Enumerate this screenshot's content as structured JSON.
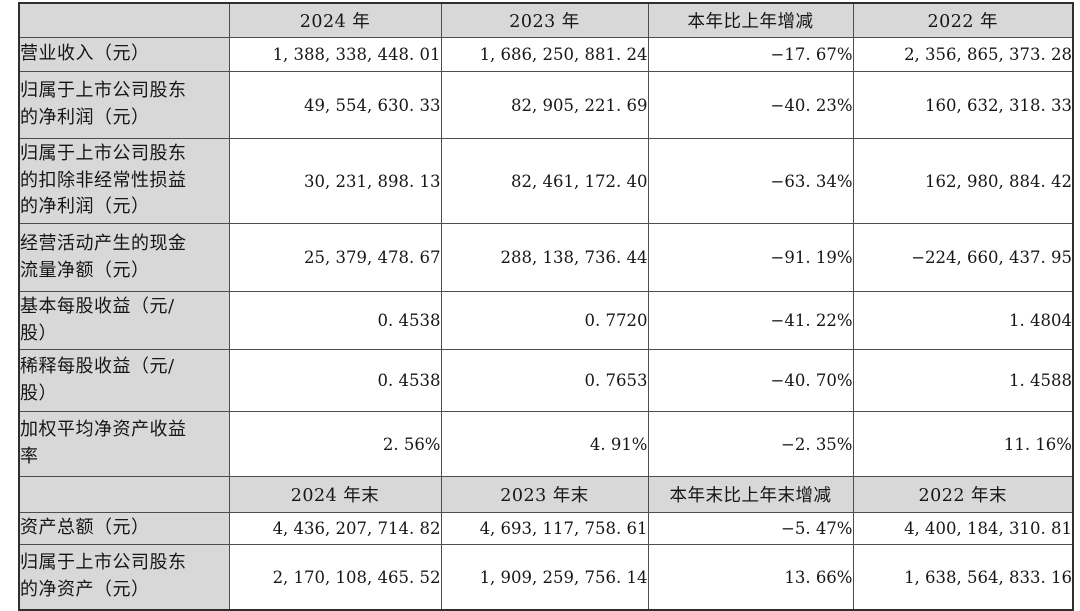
{
  "colors": {
    "header_bg": "#d8d8d8",
    "cell_bg": "#ffffff",
    "border_inner": "#4d4d4d",
    "border_outer": "#2f2f2f",
    "text": "#161616"
  },
  "table": {
    "header_annual": [
      "2024 年",
      "2023 年",
      "本年比上年增减",
      "2022 年"
    ],
    "annual_rows": [
      {
        "label": "营业收入（元）",
        "values": [
          "1, 388, 338, 448. 01",
          "1, 686, 250, 881. 24",
          "−17. 67%",
          "2, 356, 865, 373. 28"
        ]
      },
      {
        "label": "归属于上市公司股东\n的净利润（元）",
        "values": [
          "49, 554, 630. 33",
          "82, 905, 221. 69",
          "−40. 23%",
          "160, 632, 318. 33"
        ]
      },
      {
        "label": "归属于上市公司股东\n的扣除非经常性损益\n的净利润（元）",
        "values": [
          "30, 231, 898. 13",
          "82, 461, 172. 40",
          "−63. 34%",
          "162, 980, 884. 42"
        ]
      },
      {
        "label": "经营活动产生的现金\n流量净额（元）",
        "values": [
          "25, 379, 478. 67",
          "288, 138, 736. 44",
          "−91. 19%",
          "−224, 660, 437. 95"
        ]
      },
      {
        "label": "基本每股收益（元/\n股）",
        "values": [
          "0. 4538",
          "0. 7720",
          "−41. 22%",
          "1. 4804"
        ]
      },
      {
        "label": "稀释每股收益（元/\n股）",
        "values": [
          "0. 4538",
          "0. 7653",
          "−40. 70%",
          "1. 4588"
        ]
      },
      {
        "label": "加权平均净资产收益\n率",
        "values": [
          "2. 56%",
          "4. 91%",
          "−2. 35%",
          "11. 16%"
        ]
      }
    ],
    "header_eoy": [
      "2024 年末",
      "2023 年末",
      "本年末比上年末增减",
      "2022 年末"
    ],
    "eoy_rows": [
      {
        "label": "资产总额（元）",
        "values": [
          "4, 436, 207, 714. 82",
          "4, 693, 117, 758. 61",
          "−5. 47%",
          "4, 400, 184, 310. 81"
        ]
      },
      {
        "label": "归属于上市公司股东\n的净资产（元）",
        "values": [
          "2, 170, 108, 465. 52",
          "1, 909, 259, 756. 14",
          "13. 66%",
          "1, 638, 564, 833. 16"
        ]
      }
    ]
  }
}
